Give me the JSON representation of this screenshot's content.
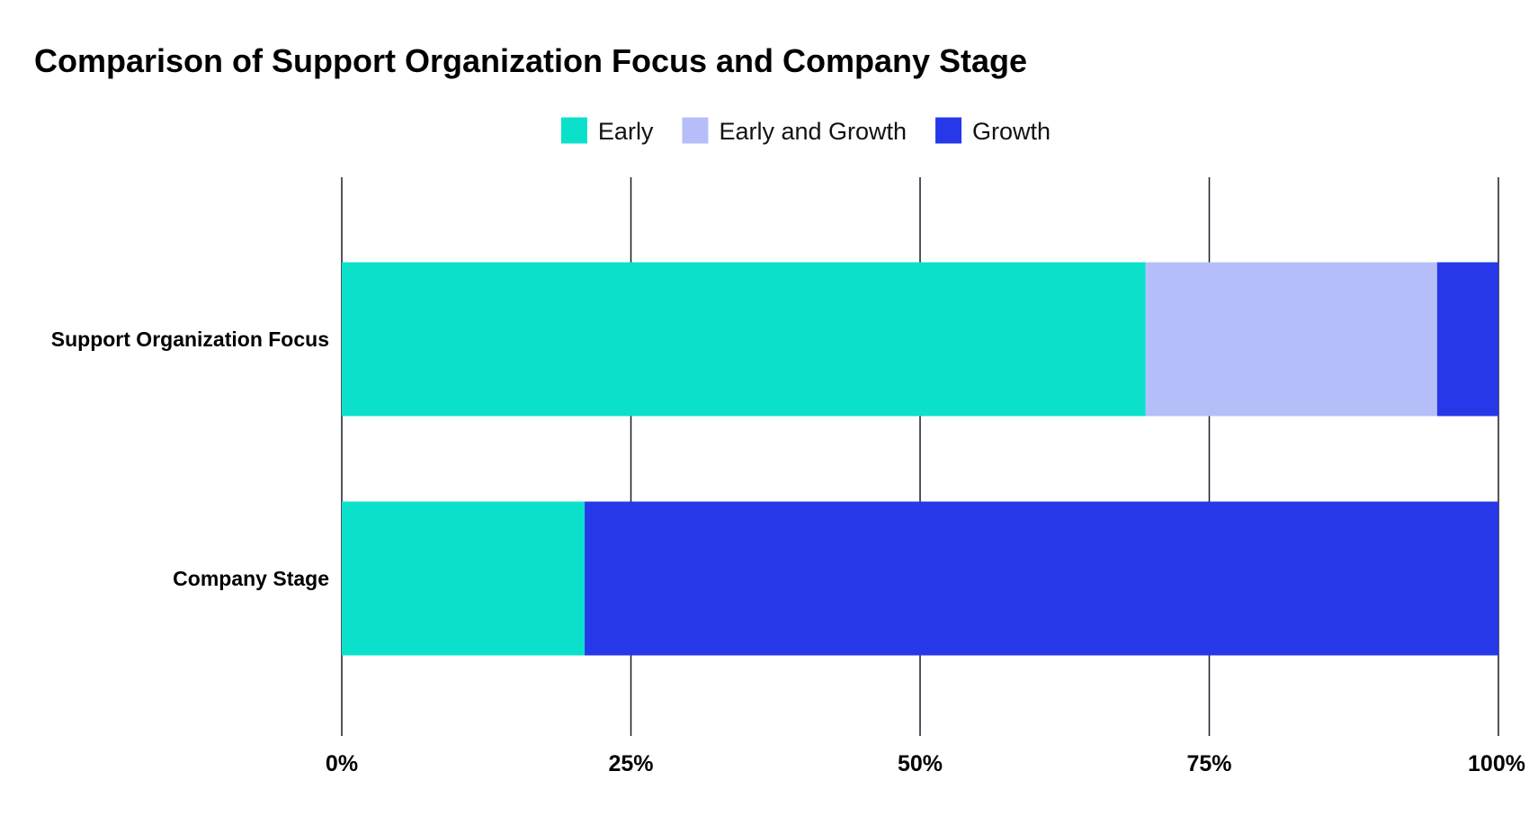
{
  "chart_data": {
    "type": "bar",
    "orientation": "horizontal",
    "stacked": true,
    "title": "Comparison of Support Organization Focus and Company Stage",
    "categories": [
      "Support Organization Focus",
      "Company Stage"
    ],
    "series": [
      {
        "name": "Early",
        "color": "#0be0cb",
        "values": [
          69.5,
          21
        ]
      },
      {
        "name": "Early and Growth",
        "color": "#b6bef9",
        "values": [
          25.2,
          0
        ]
      },
      {
        "name": "Growth",
        "color": "#2738e8",
        "values": [
          5.3,
          79
        ]
      }
    ],
    "xlim": [
      0,
      100
    ],
    "x_ticks": [
      {
        "value": 0,
        "label": "0%"
      },
      {
        "value": 25,
        "label": "25%"
      },
      {
        "value": 50,
        "label": "50%"
      },
      {
        "value": 75,
        "label": "75%"
      },
      {
        "value": 100,
        "label": "100%"
      }
    ],
    "grid": true,
    "legend_position": "top-center"
  }
}
